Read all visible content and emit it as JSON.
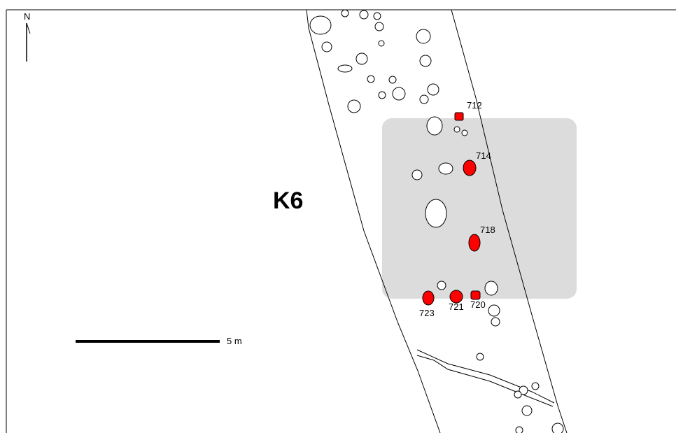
{
  "map": {
    "area_label": "K6",
    "north_label": "N",
    "scale_label": "5 m",
    "highlight_color": "#dcdcdc",
    "feature_color_selected": "#ff0000",
    "feature_color_other": "#ffffff",
    "selected_features": [
      {
        "id": "712",
        "label": "712"
      },
      {
        "id": "714",
        "label": "714"
      },
      {
        "id": "718",
        "label": "718"
      },
      {
        "id": "720",
        "label": "720"
      },
      {
        "id": "721",
        "label": "721"
      },
      {
        "id": "723",
        "label": "723"
      }
    ]
  }
}
